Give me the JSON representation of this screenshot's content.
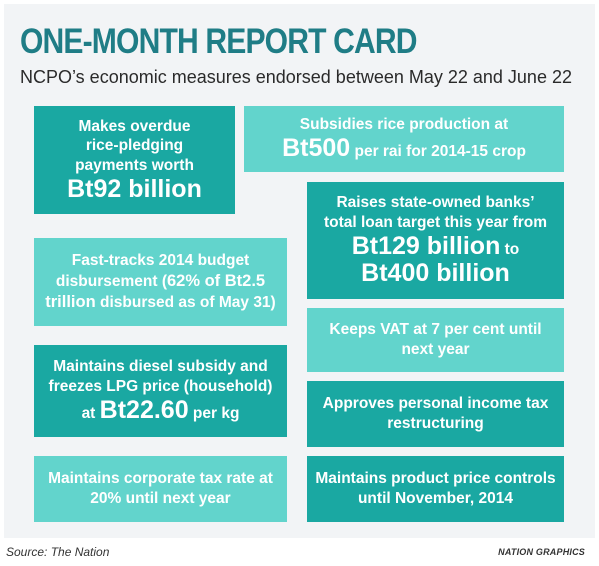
{
  "header": {
    "title": "ONE-MONTH REPORT CARD",
    "subtitle": "NCPO’s economic measures endorsed between May 22 and June 22"
  },
  "cards": {
    "rice_pledging": {
      "line1": "Makes overdue",
      "line2": "rice-pledging",
      "line3": "payments worth",
      "amount": "Bt92 billion"
    },
    "rice_subsidy": {
      "line1": "Subsidies rice production at",
      "amount": "Bt500",
      "suffix": " per rai for 2014-15 crop"
    },
    "bank_loans": {
      "line1": "Raises state-owned banks’",
      "line2": "total loan target this year from",
      "amount_from": "Bt129 billion",
      "joiner": " to",
      "amount_to": "Bt400 billion"
    },
    "budget": {
      "prefix": "Fast-tracks 2014 budget disbursement (",
      "highlight": "62% of Bt2.5 trillion",
      "suffix": " disbursed as of May 31)"
    },
    "vat": {
      "text": "Keeps VAT at 7 per cent until next year"
    },
    "diesel": {
      "line1": "Maintains diesel subsidy and",
      "line2": "freezes LPG price (household)",
      "prefix": "at ",
      "amount": "Bt22.60",
      "suffix": " per kg"
    },
    "income_tax": {
      "text": "Approves personal income tax restructuring"
    },
    "corporate_tax": {
      "text": "Maintains corporate tax rate at 20% until next year"
    },
    "price_controls": {
      "text": "Maintains product price controls until November, 2014"
    }
  },
  "footer": {
    "source": "Source: The Nation",
    "credit": "NATION GRAPHICS"
  },
  "colors": {
    "title": "#1f7d86",
    "box_dark": "#1aa8a2",
    "box_light": "#62d4cc",
    "panel": "#f2f4f6"
  }
}
